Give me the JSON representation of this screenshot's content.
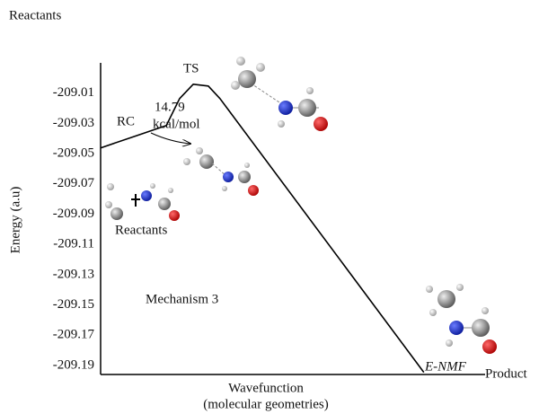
{
  "chart_data": {
    "type": "line",
    "title": "Reactants",
    "ylabel": "Energy (a.u)",
    "xlabel": [
      "Wavefunction",
      "(molecular geometries)"
    ],
    "annotations": [
      "TS",
      "RC",
      "14.79",
      "kcal/mol",
      "Reactants",
      "Mechanism 3",
      "E-NMF",
      "Product"
    ],
    "x": [
      0,
      8.8,
      16.9,
      20.3,
      23.8,
      27.7,
      30.7,
      83.1
    ],
    "xlim": [
      0,
      100
    ],
    "xticks": [],
    "series": [
      {
        "color": "#000000",
        "values": [
          -209.0462,
          -209.0385,
          -209.0314,
          -209.0136,
          -209.0041,
          -209.0053,
          -209.0136,
          -209.1946
        ]
      }
    ],
    "ylim": [
      -209.196,
      -208.99
    ],
    "yticks": [
      -209.01,
      -209.03,
      -209.05,
      -209.07,
      -209.09,
      -209.11,
      -209.13,
      -209.15,
      -209.17,
      -209.19
    ],
    "grid": false
  }
}
